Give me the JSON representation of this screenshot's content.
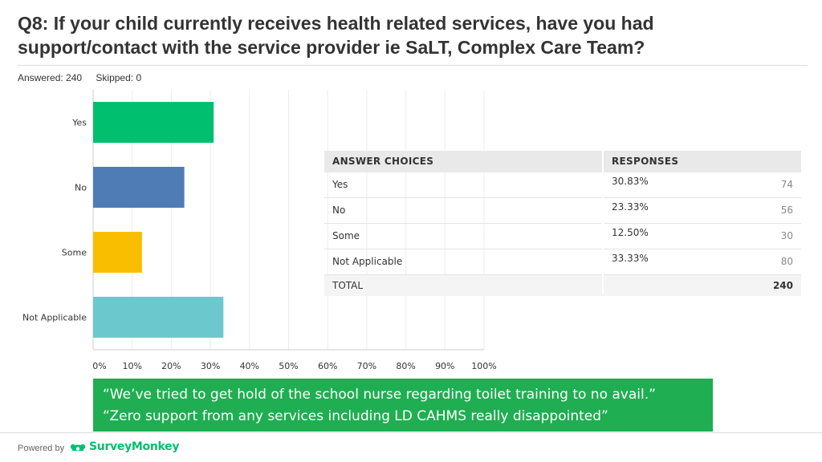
{
  "title_line1": "Q8: If your child currently receives health related services, have you had",
  "title_line2": "support/contact with the service provider ie SaLT, Complex Care Team?",
  "answered": "Answered: 240",
  "skipped": "Skipped: 0",
  "chart_data": {
    "type": "bar",
    "orientation": "horizontal",
    "categories": [
      "Yes",
      "No",
      "Some",
      "Not Applicable"
    ],
    "values": [
      30.83,
      23.33,
      12.5,
      33.33
    ],
    "colors": [
      "#00bf6f",
      "#507cb6",
      "#f9be00",
      "#6bc8cd"
    ],
    "xlim": [
      0,
      100
    ],
    "xticks": [
      "0%",
      "10%",
      "20%",
      "30%",
      "40%",
      "50%",
      "60%",
      "70%",
      "80%",
      "90%",
      "100%"
    ],
    "grid": true
  },
  "table": {
    "headers": [
      "ANSWER CHOICES",
      "RESPONSES"
    ],
    "rows": [
      {
        "choice": "Yes",
        "percent": "30.83%",
        "count": "74"
      },
      {
        "choice": "No",
        "percent": "23.33%",
        "count": "56"
      },
      {
        "choice": "Some",
        "percent": "12.50%",
        "count": "30"
      },
      {
        "choice": "Not Applicable",
        "percent": "33.33%",
        "count": "80"
      }
    ],
    "total_label": "TOTAL",
    "total_value": "240"
  },
  "quote_line1": "“We’ve tried to get hold of the school nurse regarding toilet training to no avail.”",
  "quote_line2": "“Zero support from any services including LD CAHMS really disappointed”",
  "footer": {
    "powered_by": "Powered by",
    "brand": "SurveyMonkey",
    "brand_icon": "surveymonkey-logo-icon"
  }
}
